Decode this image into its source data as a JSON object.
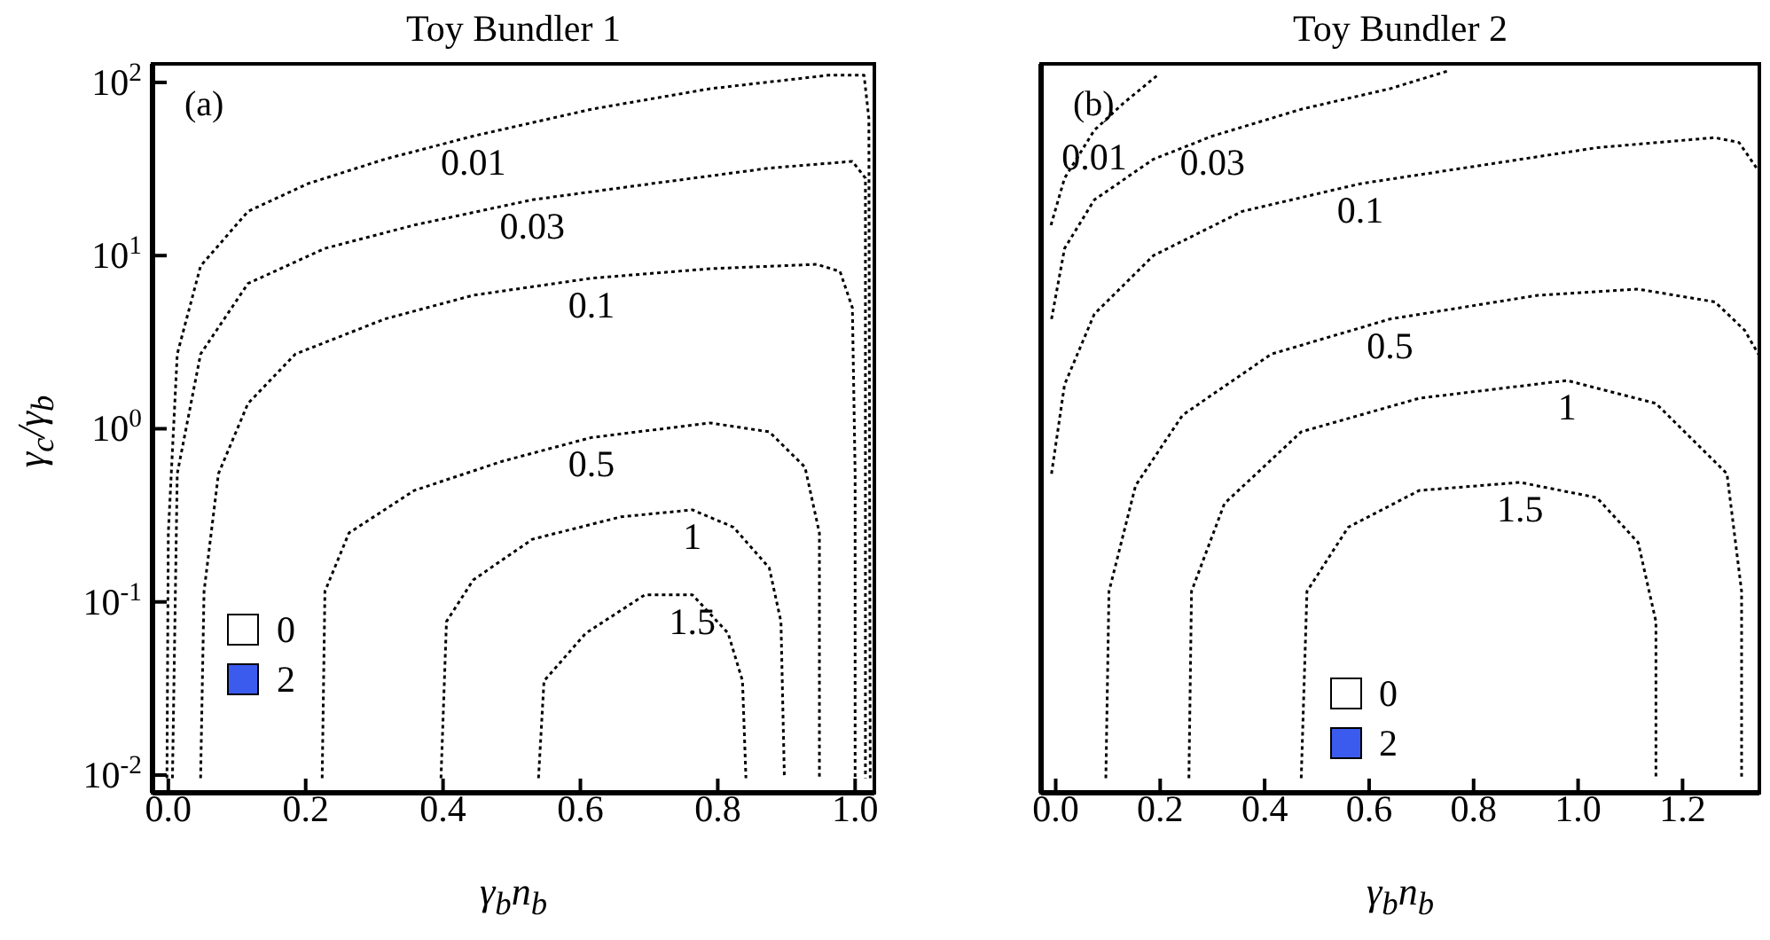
{
  "chart_data": [
    {
      "type": "line",
      "title": "Toy Bundler 1",
      "xlabel": "γ$_{b}$n$_{b}$",
      "ylabel": "γ$_{c}$/γ$_{b}$",
      "annotations": [
        "(a)",
        "0",
        "2"
      ],
      "log": "y",
      "line_style": "dotted",
      "xlim": [
        -0.023,
        1.028
      ],
      "xticks": [
        {
          "value": 0,
          "label": "0.0"
        },
        {
          "value": 0.2,
          "label": "0.2"
        },
        {
          "value": 0.4,
          "label": "0.4"
        },
        {
          "value": 0.6,
          "label": "0.6"
        },
        {
          "value": 0.8,
          "label": "0.8"
        },
        {
          "value": 1,
          "label": "1.0"
        }
      ],
      "ylim": [
        0.0079,
        128
      ],
      "yticks": [
        {
          "value": 0.01,
          "label": "10$^{-2}$"
        },
        {
          "value": 0.1,
          "label": "10$^{-1}$"
        },
        {
          "value": 1,
          "label": "10$^{0}$"
        },
        {
          "value": 10,
          "label": "10$^{1}$"
        },
        {
          "value": 100,
          "label": "10$^{2}$"
        }
      ],
      "series": [
        {
          "name": "0.01",
          "color": "#000000",
          "x": [
            -0.002,
            0,
            0.013,
            0.047,
            0.116,
            0.203,
            0.315,
            0.444,
            0.616,
            0.789,
            0.961,
            1.013,
            1.02,
            1.022
          ],
          "values": [
            0.0096,
            0.25,
            2.7,
            8.7,
            18,
            26,
            36,
            49,
            70,
            92,
            110,
            110,
            62,
            0.0096
          ]
        },
        {
          "name": "0.03",
          "color": "#000000",
          "x": [
            0.006,
            0.013,
            0.047,
            0.116,
            0.228,
            0.358,
            0.53,
            0.703,
            0.875,
            0.996,
            1.015,
            1.015
          ],
          "values": [
            0.0096,
            0.55,
            2.7,
            6.9,
            11,
            15,
            21,
            26,
            32,
            35,
            28,
            0.0096
          ]
        },
        {
          "name": "0.1",
          "color": "#000000",
          "x": [
            0.047,
            0.052,
            0.073,
            0.116,
            0.185,
            0.315,
            0.444,
            0.616,
            0.789,
            0.944,
            0.978,
            0.996,
            1,
            1
          ],
          "values": [
            0.0096,
            0.115,
            0.55,
            1.4,
            2.7,
            4.3,
            5.9,
            7.4,
            8.4,
            8.9,
            8.1,
            5,
            0.55,
            0.0096
          ]
        },
        {
          "name": "0.5",
          "color": "#000000",
          "x": [
            0.224,
            0.228,
            0.263,
            0.358,
            0.487,
            0.616,
            0.789,
            0.875,
            0.927,
            0.948,
            0.948
          ],
          "values": [
            0.0096,
            0.115,
            0.25,
            0.44,
            0.65,
            0.89,
            1.08,
            0.96,
            0.6,
            0.25,
            0.0096
          ]
        },
        {
          "name": "1",
          "color": "#000000",
          "x": [
            0.397,
            0.405,
            0.444,
            0.53,
            0.659,
            0.763,
            0.823,
            0.875,
            0.892,
            0.897
          ],
          "values": [
            0.0096,
            0.077,
            0.134,
            0.23,
            0.31,
            0.34,
            0.27,
            0.157,
            0.077,
            0.0096
          ]
        },
        {
          "name": "1.5",
          "color": "#000000",
          "x": [
            0.539,
            0.547,
            0.608,
            0.694,
            0.763,
            0.815,
            0.836,
            0.841
          ],
          "values": [
            0.0096,
            0.035,
            0.066,
            0.11,
            0.11,
            0.066,
            0.035,
            0.0096
          ]
        }
      ]
    },
    {
      "type": "line",
      "title": "Toy Bundler 2",
      "xlabel": "γ$_{b}$n$_{b}$",
      "annotations": [
        "(b)",
        "0",
        "2"
      ],
      "log": "y",
      "line_style": "dotted",
      "tick_labels": "x",
      "xlim": [
        -0.028,
        1.347
      ],
      "xticks": [
        {
          "value": 0,
          "label": "0.0"
        },
        {
          "value": 0.2,
          "label": "0.2"
        },
        {
          "value": 0.4,
          "label": "0.4"
        },
        {
          "value": 0.6,
          "label": "0.6"
        },
        {
          "value": 0.8,
          "label": "0.8"
        },
        {
          "value": 1,
          "label": "1.0"
        },
        {
          "value": 1.2,
          "label": "1.2"
        }
      ],
      "ylim": [
        0.0079,
        128
      ],
      "yticks": [
        {
          "value": 0.01,
          "label": null
        },
        {
          "value": 0.1,
          "label": null
        },
        {
          "value": 1,
          "label": null
        },
        {
          "value": 10,
          "label": null
        },
        {
          "value": 100,
          "label": null
        }
      ],
      "series": [
        {
          "name": "0.01",
          "color": "#000000",
          "x": [
            -0.009,
            0.017,
            0.074,
            0.13,
            0.198
          ],
          "values": [
            15,
            28,
            53,
            76,
            112
          ]
        },
        {
          "name": "0.03",
          "color": "#000000",
          "x": [
            -0.008,
            0.017,
            0.074,
            0.187,
            0.3,
            0.47,
            0.64,
            0.753
          ],
          "values": [
            4.3,
            11,
            21,
            36,
            49,
            70,
            92,
            117
          ]
        },
        {
          "name": "0.1",
          "color": "#000000",
          "x": [
            -0.008,
            0.017,
            0.074,
            0.187,
            0.357,
            0.583,
            0.809,
            1.036,
            1.262,
            1.308,
            1.345
          ],
          "values": [
            0.55,
            1.8,
            4.6,
            10,
            18,
            26,
            33,
            42,
            48,
            45,
            31
          ]
        },
        {
          "name": "0.5",
          "color": "#000000",
          "x": [
            0.096,
            0.102,
            0.153,
            0.243,
            0.413,
            0.64,
            0.923,
            1.115,
            1.262,
            1.319,
            1.345
          ],
          "values": [
            0.0096,
            0.115,
            0.47,
            1.2,
            2.7,
            4.3,
            5.9,
            6.4,
            5.4,
            3.7,
            2.7
          ]
        },
        {
          "name": "1",
          "color": "#000000",
          "x": [
            0.255,
            0.26,
            0.323,
            0.47,
            0.696,
            0.979,
            1.149,
            1.285,
            1.313,
            1.313
          ],
          "values": [
            0.0096,
            0.115,
            0.37,
            0.96,
            1.5,
            1.9,
            1.4,
            0.55,
            0.115,
            0.0096
          ]
        },
        {
          "name": "1.5",
          "color": "#000000",
          "x": [
            0.47,
            0.481,
            0.56,
            0.696,
            0.889,
            1.036,
            1.115,
            1.149,
            1.149
          ],
          "values": [
            0.0096,
            0.115,
            0.27,
            0.44,
            0.49,
            0.4,
            0.22,
            0.077,
            0.0096
          ]
        }
      ]
    }
  ]
}
